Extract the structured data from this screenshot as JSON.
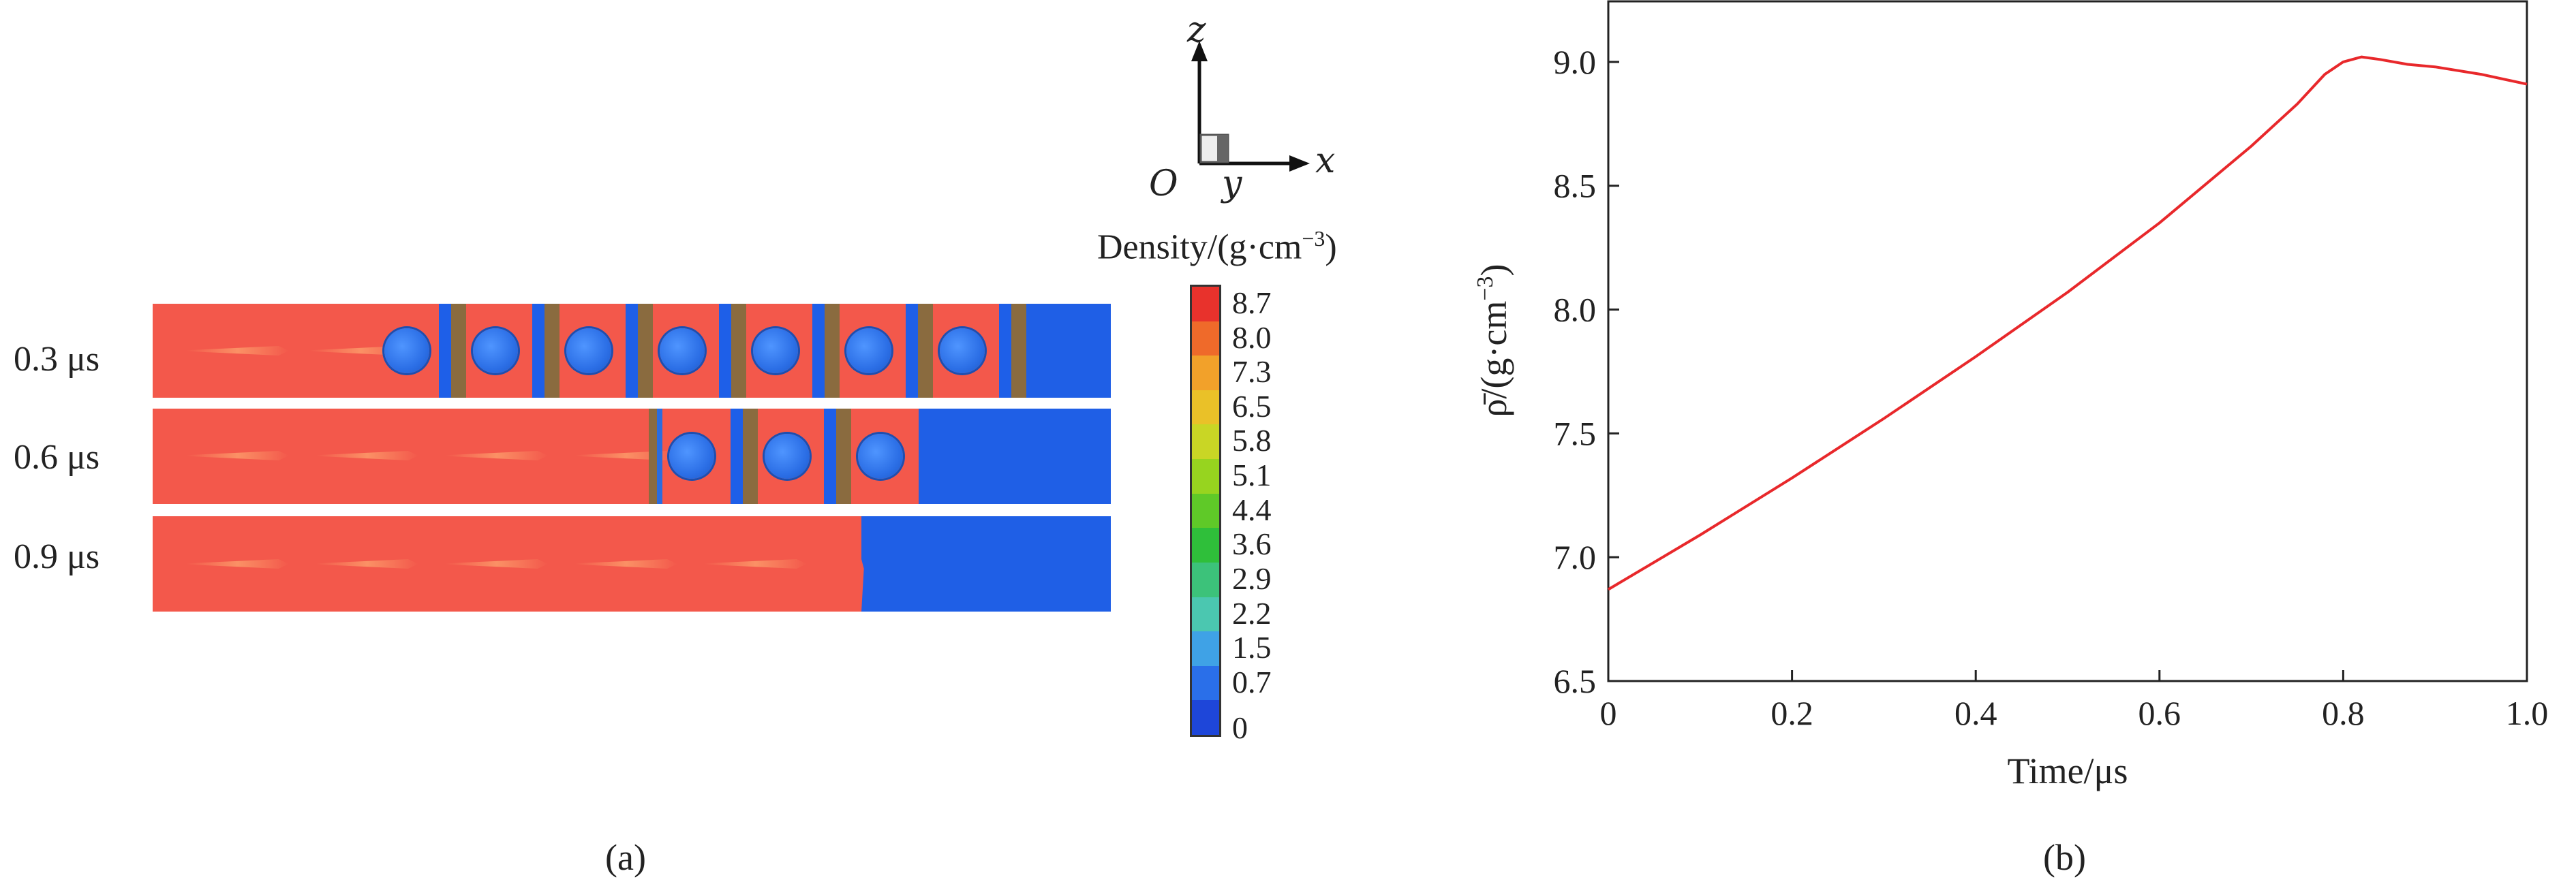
{
  "panel_a": {
    "tag": "(a)",
    "time_labels": [
      "0.3 μs",
      "0.6 μs",
      "0.9 μs"
    ],
    "axes": {
      "z": "z",
      "x": "x",
      "y": "y",
      "origin": "O"
    },
    "colorbar": {
      "title_main": "Density/(g·cm",
      "title_exp": "−3",
      "title_close": ")",
      "ticks": [
        "8.7",
        "8.0",
        "7.3",
        "6.5",
        "5.8",
        "5.1",
        "4.4",
        "3.6",
        "2.9",
        "2.2",
        "1.5",
        "0.7",
        "0"
      ],
      "colors": [
        "#e8322c",
        "#ef6a2a",
        "#f2a12a",
        "#eac128",
        "#c9d625",
        "#97d41f",
        "#5fc928",
        "#2fbf3a",
        "#3cc27a",
        "#4bc7b0",
        "#3fa2e6",
        "#2a6fe9",
        "#1e46d9"
      ]
    }
  },
  "panel_b": {
    "tag": "(b)"
  },
  "chart_data": {
    "type": "line",
    "xlabel": "Time/μs",
    "ylabel_main": "ρ̄/(g·cm",
    "ylabel_exp": "−3",
    "ylabel_close": ")",
    "xlim": [
      0,
      1.0
    ],
    "ylim": [
      6.5,
      9.25
    ],
    "xticks": [
      0,
      0.2,
      0.4,
      0.6,
      0.8,
      1.0
    ],
    "xtick_labels": [
      "0",
      "0.2",
      "0.4",
      "0.6",
      "0.8",
      "1.0"
    ],
    "yticks": [
      6.5,
      7.0,
      7.5,
      8.0,
      8.5,
      9.0
    ],
    "ytick_labels": [
      "6.5",
      "7.0",
      "7.5",
      "8.0",
      "8.5",
      "9.0"
    ],
    "grid": false,
    "series": [
      {
        "color": "#e8282b",
        "x": [
          0,
          0.1,
          0.2,
          0.3,
          0.4,
          0.5,
          0.6,
          0.7,
          0.75,
          0.78,
          0.8,
          0.82,
          0.84,
          0.87,
          0.9,
          0.95,
          1.0
        ],
        "y": [
          6.87,
          7.09,
          7.32,
          7.56,
          7.81,
          8.07,
          8.35,
          8.66,
          8.83,
          8.95,
          9.0,
          9.02,
          9.01,
          8.99,
          8.98,
          8.95,
          8.91
        ]
      }
    ]
  }
}
